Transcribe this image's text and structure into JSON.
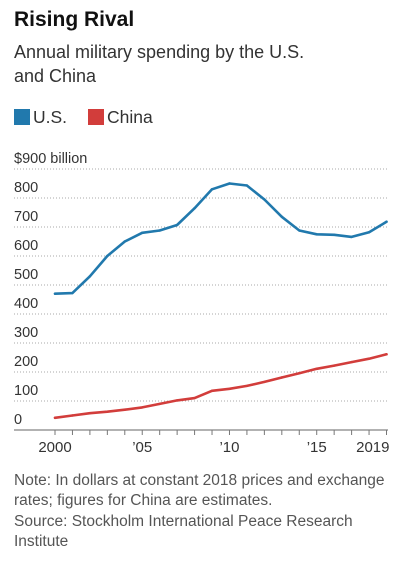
{
  "chart_data": {
    "type": "line",
    "title": "Rising Rival",
    "subtitle": "Annual military spending by the U.S. and China",
    "x": [
      2000,
      2001,
      2002,
      2003,
      2004,
      2005,
      2006,
      2007,
      2008,
      2009,
      2010,
      2011,
      2012,
      2013,
      2014,
      2015,
      2016,
      2017,
      2018,
      2019
    ],
    "xlim": [
      2000,
      2019
    ],
    "x_ticks": [
      2000,
      2005,
      2010,
      2015,
      2019
    ],
    "x_tick_labels": [
      "2000",
      "’05",
      "’10",
      "’15",
      "2019"
    ],
    "ylim": [
      0,
      900
    ],
    "y_ticks": [
      0,
      100,
      200,
      300,
      400,
      500,
      600,
      700,
      800,
      900
    ],
    "y_tick_labels": [
      "0",
      "100",
      "200",
      "300",
      "400",
      "500",
      "600",
      "700",
      "800",
      "$900 billion"
    ],
    "grid": true,
    "legend": "top-left",
    "series": [
      {
        "name": "U.S.",
        "color": "#2179ad",
        "values": [
          470,
          472,
          530,
          600,
          650,
          680,
          688,
          707,
          765,
          830,
          850,
          843,
          795,
          735,
          688,
          675,
          673,
          666,
          682,
          718
        ]
      },
      {
        "name": "China",
        "color": "#d23d3b",
        "values": [
          42,
          50,
          58,
          63,
          70,
          78,
          90,
          102,
          110,
          135,
          142,
          152,
          166,
          181,
          196,
          211,
          222,
          234,
          246,
          261
        ]
      }
    ],
    "note": "Note: In dollars at constant 2018 prices and exchange rates; figures for China are estimates.",
    "source": "Source: Stockholm International Peace Research Institute"
  }
}
